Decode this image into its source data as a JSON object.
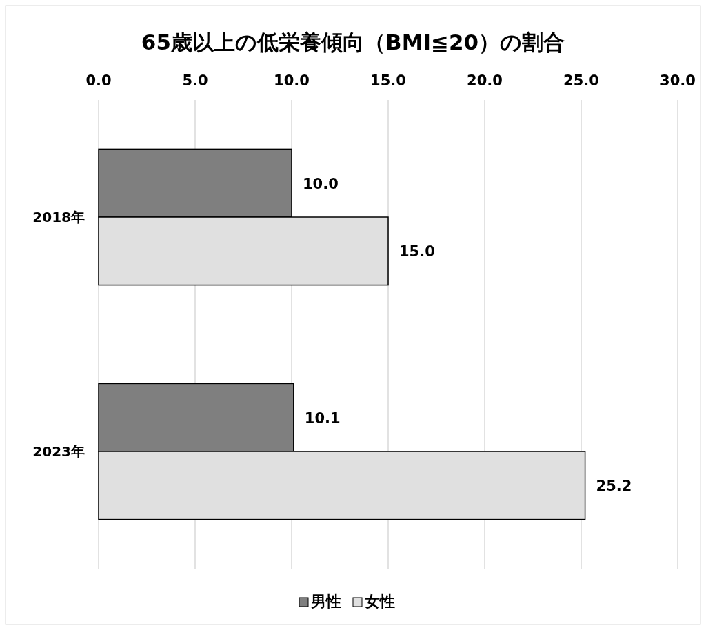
{
  "chart_data": {
    "type": "bar",
    "orientation": "horizontal",
    "title": "65歳以上の低栄養傾向（BMI≦20）の割合",
    "categories": [
      "2018年",
      "2023年"
    ],
    "series": [
      {
        "name": "男性",
        "color": "#7f7f7f",
        "values": [
          10.0,
          10.1
        ],
        "value_labels": [
          "10.0",
          "10.1"
        ]
      },
      {
        "name": "女性",
        "color": "#e0e0e0",
        "values": [
          15.0,
          25.2
        ],
        "value_labels": [
          "15.0",
          "25.2"
        ]
      }
    ],
    "xlim": [
      0,
      30
    ],
    "xticks": [
      {
        "value": 0,
        "label": "0.0"
      },
      {
        "value": 5,
        "label": "5.0"
      },
      {
        "value": 10,
        "label": "10.0"
      },
      {
        "value": 15,
        "label": "15.0"
      },
      {
        "value": 20,
        "label": "20.0"
      },
      {
        "value": 25,
        "label": "25.0"
      },
      {
        "value": 30,
        "label": "30.0"
      }
    ],
    "grid": "x",
    "legend": "bottom"
  }
}
